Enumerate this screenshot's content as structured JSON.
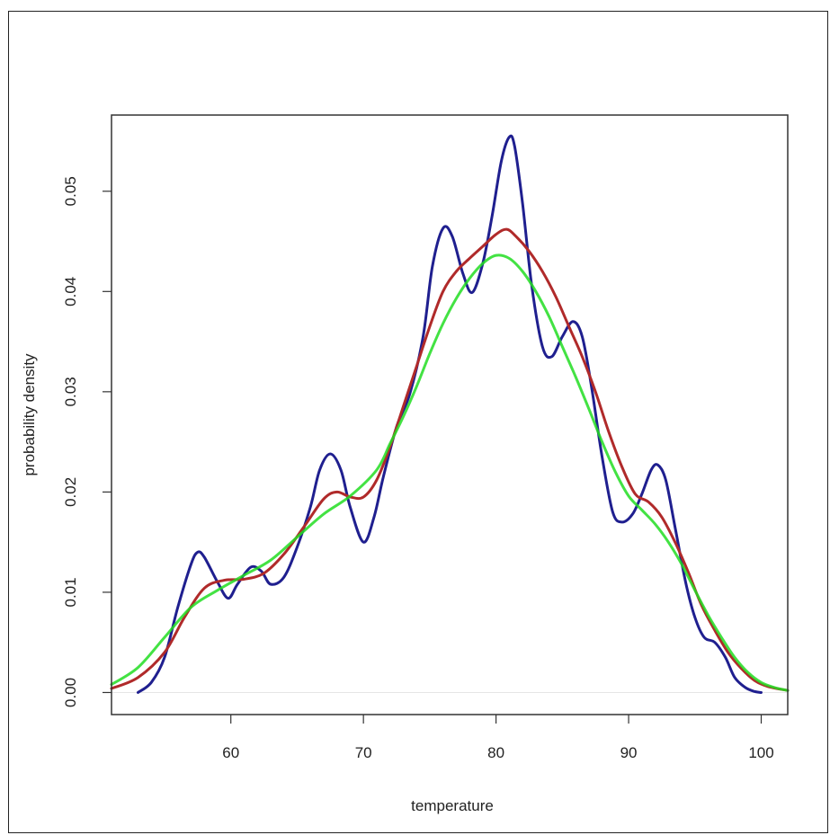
{
  "chart_data": {
    "type": "line",
    "title": "",
    "xlabel": "temperature",
    "ylabel": "probability density",
    "xlim": [
      51,
      102
    ],
    "ylim": [
      -0.0022,
      0.0576
    ],
    "x_ticks": [
      60,
      70,
      80,
      90,
      100
    ],
    "x_tick_labels": [
      "60",
      "70",
      "80",
      "90",
      "100"
    ],
    "y_ticks": [
      0.0,
      0.01,
      0.02,
      0.03,
      0.04,
      0.05
    ],
    "y_tick_labels": [
      "0.00",
      "0.01",
      "0.02",
      "0.03",
      "0.04",
      "0.05"
    ],
    "grid": false,
    "legend": false,
    "baseline": 0.0,
    "series": [
      {
        "color": "#1f1f8f",
        "x": [
          53,
          54,
          55,
          56,
          57,
          57.5,
          58,
          59,
          59.8,
          60.5,
          61.5,
          62.3,
          63,
          64,
          65,
          66,
          66.7,
          67.5,
          68.3,
          69,
          70,
          70.8,
          71.5,
          72.5,
          73.5,
          74.5,
          75.2,
          76,
          76.7,
          77.5,
          78.2,
          79,
          79.7,
          80.4,
          81,
          81.4,
          82,
          82.7,
          83.5,
          84.2,
          85,
          85.8,
          86.5,
          87.2,
          88,
          88.8,
          89.5,
          90.3,
          91,
          91.7,
          92.2,
          92.8,
          93.5,
          94.3,
          95,
          95.7,
          96.5,
          97.3,
          98,
          98.8,
          99.5,
          100
        ],
        "y": [
          0.0,
          0.001,
          0.0035,
          0.0085,
          0.0128,
          0.014,
          0.0135,
          0.011,
          0.0094,
          0.0108,
          0.0125,
          0.0121,
          0.0108,
          0.0115,
          0.0145,
          0.0185,
          0.0222,
          0.0238,
          0.0222,
          0.0185,
          0.015,
          0.0175,
          0.0215,
          0.0265,
          0.0298,
          0.0355,
          0.0425,
          0.0463,
          0.0455,
          0.0418,
          0.0399,
          0.0428,
          0.0475,
          0.053,
          0.0554,
          0.0545,
          0.0488,
          0.0405,
          0.0345,
          0.0335,
          0.0355,
          0.037,
          0.0355,
          0.0305,
          0.0235,
          0.018,
          0.017,
          0.0178,
          0.0198,
          0.0222,
          0.0227,
          0.0212,
          0.0165,
          0.011,
          0.0075,
          0.0055,
          0.005,
          0.0035,
          0.0015,
          0.0005,
          0.0001,
          0.0
        ]
      },
      {
        "color": "#b02a2a",
        "x": [
          51,
          53,
          55,
          56.5,
          58,
          59.5,
          61,
          62.5,
          64,
          65.5,
          67,
          68,
          69,
          70,
          71,
          72,
          73,
          74,
          75,
          76,
          77,
          78,
          79,
          80,
          80.8,
          81.5,
          82.5,
          83.5,
          84.5,
          85.5,
          86.5,
          87.5,
          88.5,
          89.5,
          90.5,
          91.5,
          92.5,
          93.5,
          94.5,
          95.5,
          96.5,
          97.5,
          98.5,
          99.5,
          100.5,
          102
        ],
        "y": [
          0.0004,
          0.0015,
          0.004,
          0.0075,
          0.0104,
          0.0112,
          0.0113,
          0.0119,
          0.0138,
          0.0165,
          0.0193,
          0.02,
          0.0195,
          0.0195,
          0.0212,
          0.0245,
          0.0285,
          0.0325,
          0.0365,
          0.04,
          0.042,
          0.0433,
          0.0445,
          0.0457,
          0.0462,
          0.0455,
          0.044,
          0.042,
          0.0395,
          0.0365,
          0.0335,
          0.03,
          0.026,
          0.0225,
          0.0198,
          0.019,
          0.0175,
          0.015,
          0.012,
          0.0087,
          0.0062,
          0.004,
          0.0024,
          0.0012,
          0.0006,
          0.0002
        ]
      },
      {
        "color": "#22dd22",
        "x": [
          51,
          53,
          55,
          57,
          59,
          61,
          63,
          65,
          67,
          69,
          71,
          72,
          73,
          74,
          75,
          76,
          77,
          78,
          79,
          80,
          81,
          82,
          83,
          84,
          85,
          86,
          87,
          88,
          89,
          90,
          91,
          92,
          93,
          94,
          95,
          96,
          97,
          98,
          99,
          100,
          101,
          102
        ],
        "y": [
          0.0008,
          0.0025,
          0.0055,
          0.0085,
          0.0102,
          0.0117,
          0.0132,
          0.0155,
          0.0178,
          0.0196,
          0.0222,
          0.0248,
          0.0275,
          0.0305,
          0.0338,
          0.0368,
          0.0393,
          0.0413,
          0.0428,
          0.0436,
          0.0433,
          0.042,
          0.04,
          0.0375,
          0.0345,
          0.0315,
          0.0283,
          0.025,
          0.022,
          0.0196,
          0.0182,
          0.0168,
          0.015,
          0.0128,
          0.0102,
          0.0077,
          0.0055,
          0.0035,
          0.002,
          0.001,
          0.0005,
          0.0002
        ]
      }
    ]
  }
}
